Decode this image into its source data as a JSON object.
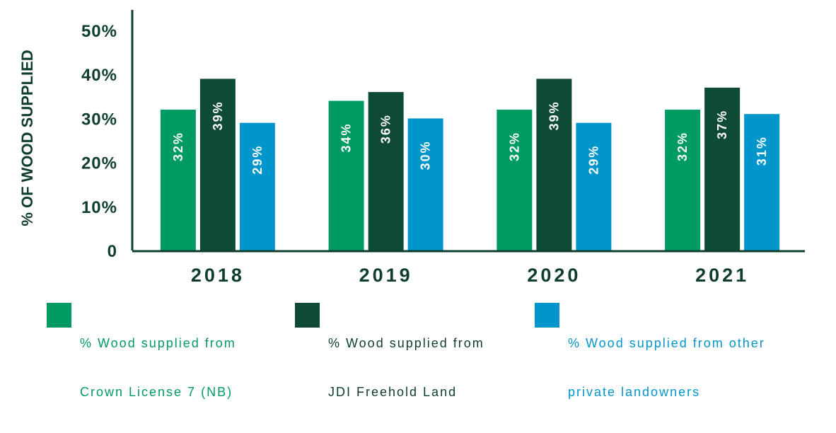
{
  "chart_data": {
    "type": "bar",
    "categories": [
      "2018",
      "2019",
      "2020",
      "2021"
    ],
    "series": [
      {
        "name": "% Wood supplied from Crown License 7 (NB)",
        "values": [
          32,
          34,
          32,
          32
        ],
        "color": "#009a63"
      },
      {
        "name": "% Wood supplied from JDI Freehold Land",
        "values": [
          39,
          36,
          39,
          37
        ],
        "color": "#0f4a35"
      },
      {
        "name": "% Wood supplied from other private landowners",
        "values": [
          29,
          30,
          29,
          31
        ],
        "color": "#0096cc"
      }
    ],
    "data_labels": [
      [
        "32%",
        "39%",
        "29%"
      ],
      [
        "34%",
        "36%",
        "30%"
      ],
      [
        "32%",
        "39%",
        "29%"
      ],
      [
        "32%",
        "37%",
        "31%"
      ]
    ],
    "ylabel": "% OF WOOD SUPPLIED",
    "ylim": [
      0,
      50
    ],
    "yticks": [
      "0",
      "10%",
      "20%",
      "30%",
      "40%",
      "50%"
    ],
    "grid": false,
    "legend_position": "bottom"
  },
  "legend": {
    "items": [
      {
        "line1": "% Wood supplied from",
        "line2": "Crown License 7 (NB)",
        "color": "#009a63",
        "text_color": "#009a63"
      },
      {
        "line1": "% Wood supplied from",
        "line2": "JDI Freehold Land",
        "color": "#0f4a35",
        "text_color": "#0f3d2e"
      },
      {
        "line1": "% Wood supplied from other",
        "line2": "private landowners",
        "color": "#0096cc",
        "text_color": "#0096cc"
      }
    ]
  }
}
